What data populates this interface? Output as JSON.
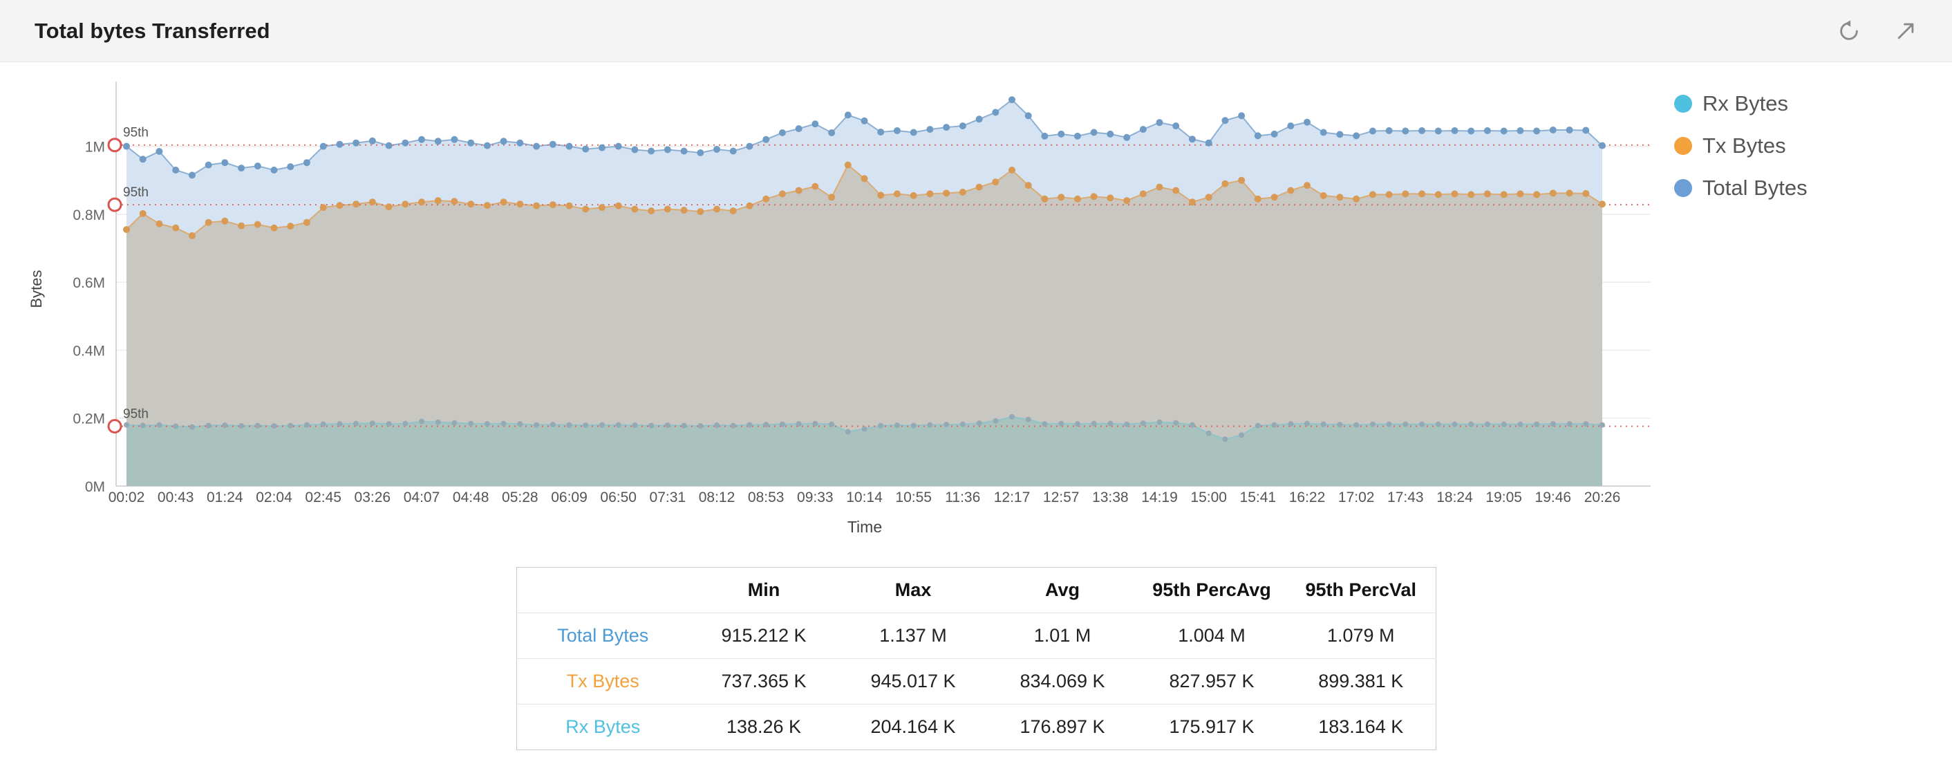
{
  "header": {
    "title": "Total bytes Transferred",
    "icons": [
      {
        "name": "refresh-icon"
      },
      {
        "name": "expand-icon"
      }
    ]
  },
  "chart_data": {
    "type": "area",
    "title": "Total bytes Transferred",
    "xlabel": "Time",
    "ylabel": "Bytes",
    "grid": true,
    "legend_position": "top-right",
    "y_axis": {
      "max_k": 1160,
      "tick_values_k": [
        0,
        200,
        400,
        600,
        800,
        1000
      ],
      "tick_labels": [
        "0M",
        "0.2M",
        "0.4M",
        "0.6M",
        "0.8M",
        "1M"
      ]
    },
    "x_ticks": {
      "points_per_tick": 3,
      "labels": [
        "00:02",
        "00:43",
        "01:24",
        "02:04",
        "02:45",
        "03:26",
        "04:07",
        "04:48",
        "05:28",
        "06:09",
        "06:50",
        "07:31",
        "08:12",
        "08:53",
        "09:33",
        "10:14",
        "10:55",
        "11:36",
        "12:17",
        "12:57",
        "13:38",
        "14:19",
        "15:00",
        "15:41",
        "16:22",
        "17:02",
        "17:43",
        "18:24",
        "19:05",
        "19:46",
        "20:26"
      ]
    },
    "legend": [
      {
        "label": "Rx Bytes",
        "color": "#4ec1e0"
      },
      {
        "label": "Tx Bytes",
        "color": "#f2a13c"
      },
      {
        "label": "Total Bytes",
        "color": "#6d9ed6"
      }
    ],
    "percentile": {
      "label": "95th",
      "color": "#d9534f",
      "line_color": "#dc6b5f",
      "lines": [
        {
          "series": "Total Bytes",
          "value_k": 1004
        },
        {
          "series": "Tx Bytes",
          "value_k": 828
        },
        {
          "series": "Rx Bytes",
          "value_k": 176
        }
      ]
    },
    "series": [
      {
        "name": "Total Bytes",
        "fill": "#d5e3f2",
        "line": "#8cb0d4",
        "dot": "#6f9bc4",
        "dot_r": 5,
        "values_k": [
          1000,
          962,
          985,
          930,
          915,
          945,
          952,
          936,
          942,
          930,
          940,
          952,
          1000,
          1006,
          1010,
          1016,
          1002,
          1010,
          1020,
          1015,
          1020,
          1010,
          1002,
          1015,
          1010,
          1000,
          1006,
          1000,
          992,
          996,
          1000,
          990,
          986,
          990,
          986,
          981,
          991,
          986,
          1000,
          1020,
          1040,
          1052,
          1066,
          1040,
          1092,
          1075,
          1042,
          1046,
          1041,
          1050,
          1056,
          1060,
          1080,
          1100,
          1137,
          1090,
          1030,
          1036,
          1030,
          1041,
          1036,
          1026,
          1050,
          1070,
          1060,
          1021,
          1010,
          1076,
          1090,
          1031,
          1036,
          1060,
          1071,
          1041,
          1035,
          1031,
          1045,
          1046,
          1045,
          1046,
          1045,
          1046,
          1045,
          1046,
          1045,
          1046,
          1045,
          1048,
          1048,
          1047,
          1002
        ]
      },
      {
        "name": "Tx Bytes",
        "fill": "#c9c7c1",
        "line": "#dcab72",
        "dot": "#d89a54",
        "dot_r": 5,
        "values_k": [
          755,
          802,
          772,
          760,
          737,
          776,
          780,
          766,
          770,
          760,
          765,
          776,
          820,
          826,
          830,
          836,
          822,
          830,
          836,
          840,
          838,
          830,
          826,
          836,
          830,
          825,
          828,
          825,
          815,
          820,
          825,
          815,
          810,
          815,
          812,
          808,
          815,
          810,
          825,
          845,
          860,
          870,
          882,
          850,
          945,
          905,
          856,
          860,
          855,
          860,
          862,
          865,
          880,
          895,
          930,
          885,
          845,
          850,
          845,
          852,
          848,
          840,
          860,
          880,
          870,
          836,
          850,
          890,
          900,
          845,
          850,
          870,
          885,
          855,
          850,
          845,
          858,
          858,
          860,
          860,
          858,
          860,
          858,
          860,
          858,
          860,
          858,
          862,
          862,
          861,
          830
        ]
      },
      {
        "name": "Rx Bytes",
        "fill": "#a9c2be",
        "line": "#8fc4cb",
        "dot": "#95a9b4",
        "dot_r": 4,
        "values_k": [
          180,
          178,
          180,
          176,
          174,
          178,
          179,
          177,
          178,
          177,
          178,
          180,
          182,
          183,
          184,
          185,
          183,
          184,
          190,
          188,
          186,
          184,
          183,
          184,
          183,
          180,
          181,
          180,
          179,
          180,
          180,
          179,
          178,
          179,
          178,
          177,
          179,
          178,
          180,
          181,
          182,
          183,
          184,
          182,
          160,
          168,
          178,
          179,
          178,
          180,
          181,
          182,
          185,
          192,
          204,
          196,
          183,
          184,
          183,
          184,
          184,
          182,
          185,
          188,
          186,
          180,
          155,
          138,
          150,
          178,
          180,
          183,
          184,
          182,
          181,
          180,
          182,
          182,
          182,
          182,
          182,
          182,
          182,
          182,
          182,
          182,
          182,
          183,
          183,
          183,
          180
        ]
      }
    ]
  },
  "table": {
    "columns": [
      "",
      "Min",
      "Max",
      "Avg",
      "95th PercAvg",
      "95th PercVal"
    ],
    "rows": [
      {
        "label": "Total Bytes",
        "color": "#4a9bd5",
        "values": [
          "915.212 K",
          "1.137 M",
          "1.01 M",
          "1.004 M",
          "1.079 M"
        ]
      },
      {
        "label": "Tx Bytes",
        "color": "#f2a13c",
        "values": [
          "737.365 K",
          "945.017 K",
          "834.069 K",
          "827.957 K",
          "899.381 K"
        ]
      },
      {
        "label": "Rx Bytes",
        "color": "#4ec1e0",
        "values": [
          "138.26 K",
          "204.164 K",
          "176.897 K",
          "175.917 K",
          "183.164 K"
        ]
      }
    ]
  }
}
